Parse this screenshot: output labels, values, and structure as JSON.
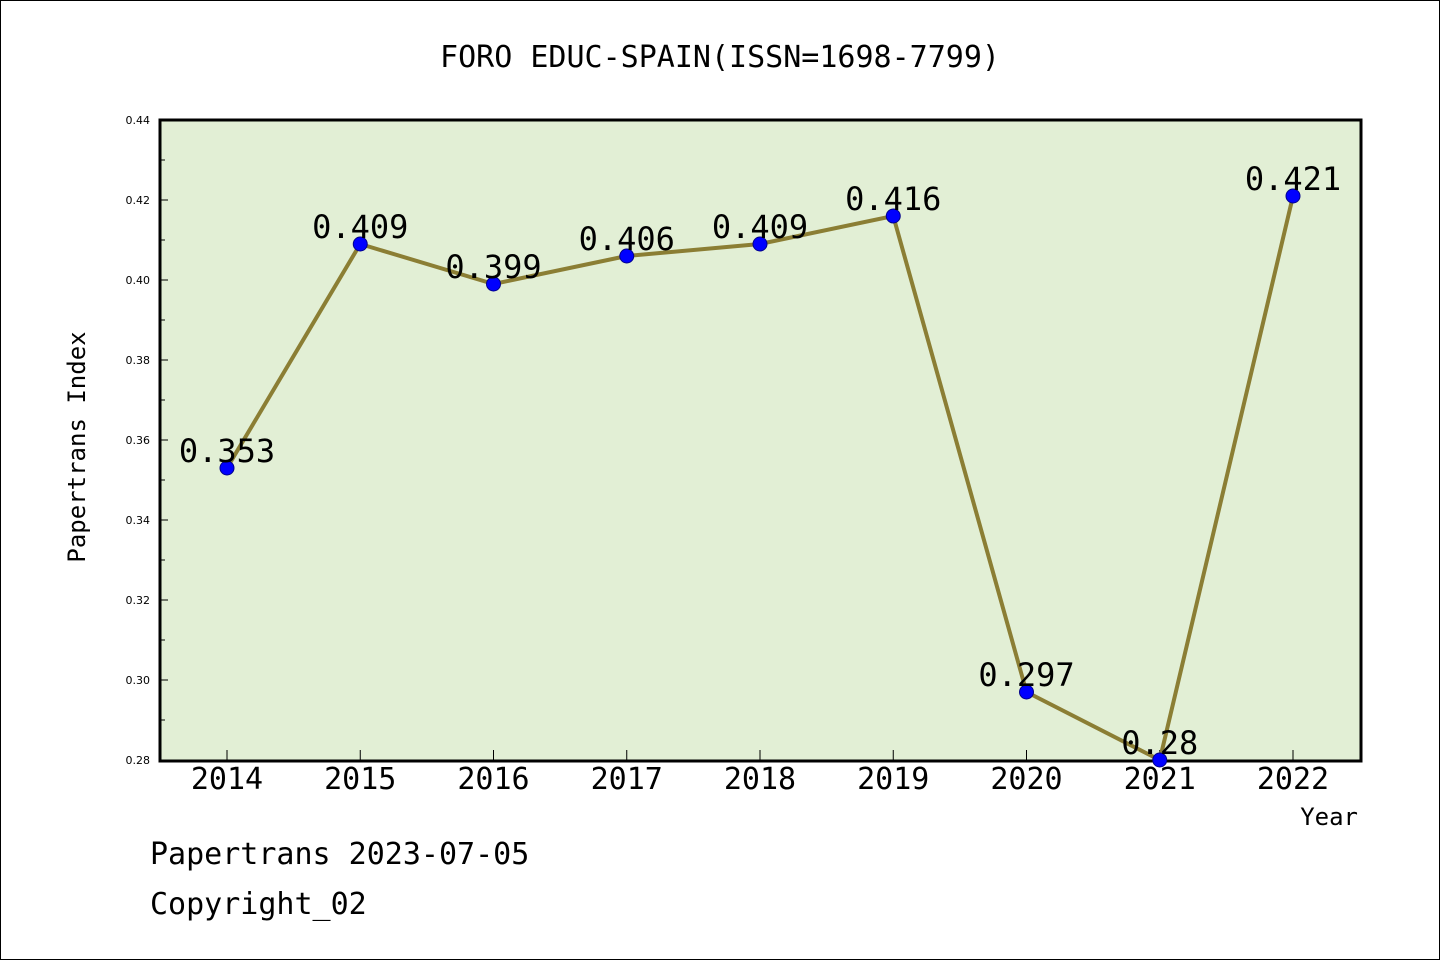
{
  "chart_data": {
    "type": "line",
    "title": "FORO EDUC-SPAIN(ISSN=1698-7799)",
    "xlabel": "Year",
    "ylabel": "Papertrans Index",
    "categories": [
      "2014",
      "2015",
      "2016",
      "2017",
      "2018",
      "2019",
      "2020",
      "2021",
      "2022"
    ],
    "series": [
      {
        "values": [
          0.353,
          0.409,
          0.399,
          0.406,
          0.409,
          0.416,
          0.297,
          0.28,
          0.421
        ],
        "labels": [
          "0.353",
          "0.409",
          "0.399",
          "0.406",
          "0.409",
          "0.416",
          "0.297",
          "0.28",
          "0.421"
        ]
      }
    ],
    "ylim": [
      0.28,
      0.44
    ],
    "yticks": [
      "0.28",
      "0.30",
      "0.32",
      "0.34",
      "0.36",
      "0.38",
      "0.40",
      "0.42",
      "0.44"
    ],
    "grid": false,
    "colors": {
      "plot_background": "#e2efd5",
      "line": "#8b7e34",
      "marker": "#0000ff"
    }
  },
  "footer": {
    "line1": "Papertrans 2023-07-05",
    "line2": "Copyright_02"
  }
}
